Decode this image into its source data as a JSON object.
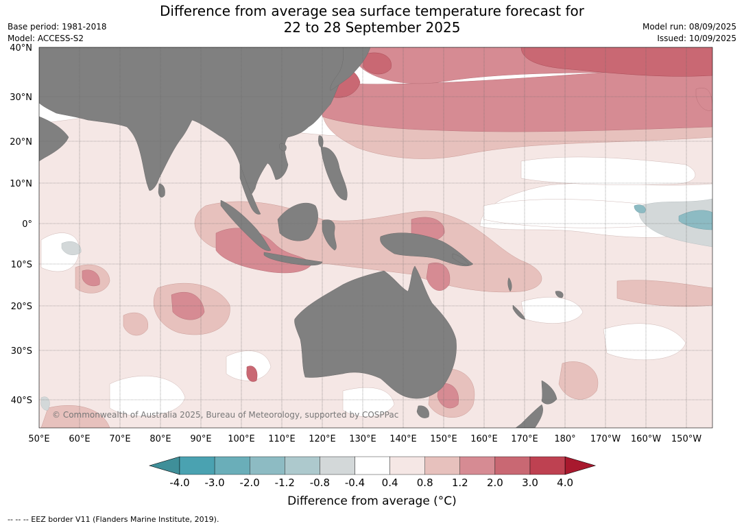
{
  "header": {
    "title_line1": "Difference from average sea surface temperature forecast for",
    "title_line2": "22 to 28 September 2025",
    "base_period": "Base period: 1981-2018",
    "model": "Model: ACCESS-S2",
    "model_run": "Model run: 08/09/2025",
    "issued": "Issued: 10/09/2025"
  },
  "map": {
    "lat_labels": [
      "40°N",
      "30°N",
      "20°N",
      "10°N",
      "0°",
      "10°S",
      "20°S",
      "30°S",
      "40°S"
    ],
    "lon_labels": [
      "50°E",
      "60°E",
      "70°E",
      "80°E",
      "90°E",
      "100°E",
      "110°E",
      "120°E",
      "130°E",
      "140°E",
      "150°E",
      "160°E",
      "170°E",
      "180°",
      "170°W",
      "160°W",
      "150°W"
    ],
    "copyright": "© Commonwealth of Australia 2025, Bureau of Meteorology, supported by COSPPac",
    "land_color": "#808080"
  },
  "colorbar": {
    "tick_labels": [
      "-4.0",
      "-3.0",
      "-2.0",
      "-1.2",
      "-0.8",
      "-0.4",
      "0.4",
      "0.8",
      "1.2",
      "2.0",
      "3.0",
      "4.0"
    ],
    "colors": [
      "#3f8f99",
      "#4aa2b1",
      "#6aaeb9",
      "#8dbbc3",
      "#adc9cd",
      "#d3d8d9",
      "#ffffff",
      "#f5e7e5",
      "#e7c1bd",
      "#d68b93",
      "#c96873",
      "#be4151",
      "#a8192e"
    ],
    "label": "Difference from average (°C)"
  },
  "footer": {
    "eez_note": "--  --  -- EEZ border V11 (Flanders Marine Institute, 2019)."
  }
}
